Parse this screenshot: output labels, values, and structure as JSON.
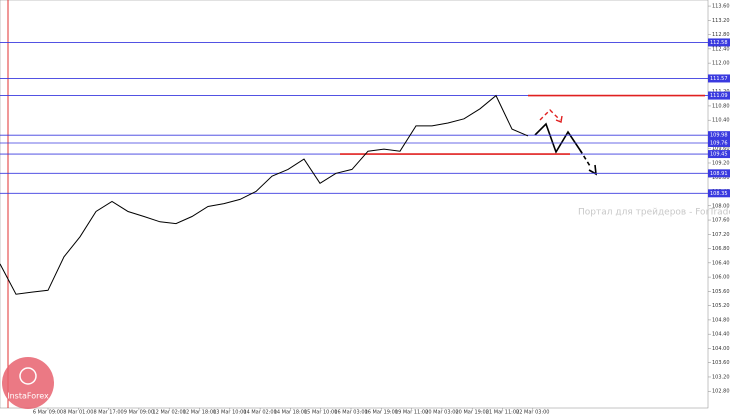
{
  "chart_data": {
    "type": "line",
    "values": [
      106.37,
      105.52,
      105.58,
      105.63,
      106.57,
      107.13,
      107.84,
      108.12,
      107.84,
      107.7,
      107.55,
      107.5,
      107.7,
      107.98,
      108.06,
      108.18,
      108.4,
      108.83,
      109.02,
      109.31,
      108.63,
      108.91,
      109.02,
      109.53,
      109.59,
      109.53,
      110.24,
      110.24,
      110.32,
      110.44,
      110.72,
      111.09,
      110.15,
      109.96
    ],
    "color": "#000000",
    "ylim": [
      102.33,
      113.77
    ],
    "yticks": [
      {
        "value": 113.6,
        "label": "113.60"
      },
      {
        "value": 113.2,
        "label": "113.20"
      },
      {
        "value": 112.8,
        "label": "112.80"
      },
      {
        "value": 112.4,
        "label": "112.40"
      },
      {
        "value": 112,
        "label": "112.00"
      },
      {
        "value": 111.6,
        "label": "111.60"
      },
      {
        "value": 111.2,
        "label": "111.20"
      },
      {
        "value": 110.8,
        "label": "110.80"
      },
      {
        "value": 110.4,
        "label": "110.40"
      },
      {
        "value": 110,
        "label": "110.00"
      },
      {
        "value": 109.6,
        "label": "109.60"
      },
      {
        "value": 109.2,
        "label": "109.20"
      },
      {
        "value": 108.8,
        "label": "108.80"
      },
      {
        "value": 108.4,
        "label": "108.40"
      },
      {
        "value": 108,
        "label": "108.00"
      },
      {
        "value": 107.6,
        "label": "107.60"
      },
      {
        "value": 107.2,
        "label": "107.20"
      },
      {
        "value": 106.8,
        "label": "106.80"
      },
      {
        "value": 106.4,
        "label": "106.40"
      },
      {
        "value": 106,
        "label": "106.00"
      },
      {
        "value": 105.6,
        "label": "105.60"
      },
      {
        "value": 105.2,
        "label": "105.20"
      },
      {
        "value": 104.8,
        "label": "104.80"
      },
      {
        "value": 104.4,
        "label": "104.40"
      },
      {
        "value": 104,
        "label": "104.00"
      },
      {
        "value": 103.6,
        "label": "103.60"
      },
      {
        "value": 103.2,
        "label": "103.20"
      },
      {
        "value": 102.8,
        "label": "102.80"
      }
    ],
    "x_labels": [
      "6 Mar 09:00",
      "8 Mar 01:00",
      "8 Mar 17:00",
      "9 Mar 09:00",
      "12 Mar 02:00",
      "12 Mar 18:00",
      "13 Mar 10:00",
      "14 Mar 02:00",
      "14 Mar 18:00",
      "15 Mar 10:00",
      "16 Mar 03:00",
      "16 Mar 19:00",
      "19 Mar 11:00",
      "20 Mar 03:00",
      "20 Mar 19:00",
      "21 Mar 11:00",
      "22 Mar 03:00"
    ],
    "levels": [
      112.58,
      111.57,
      111.09,
      109.98,
      109.76,
      109.45,
      108.91,
      108.35
    ],
    "level_color": "#3a3adf",
    "red_levels": [
      111.09,
      109.45
    ],
    "red_color": "#e02020",
    "watermark": "Портал для трейдеров - ForTrader.ru",
    "logo": "InstaForex"
  }
}
